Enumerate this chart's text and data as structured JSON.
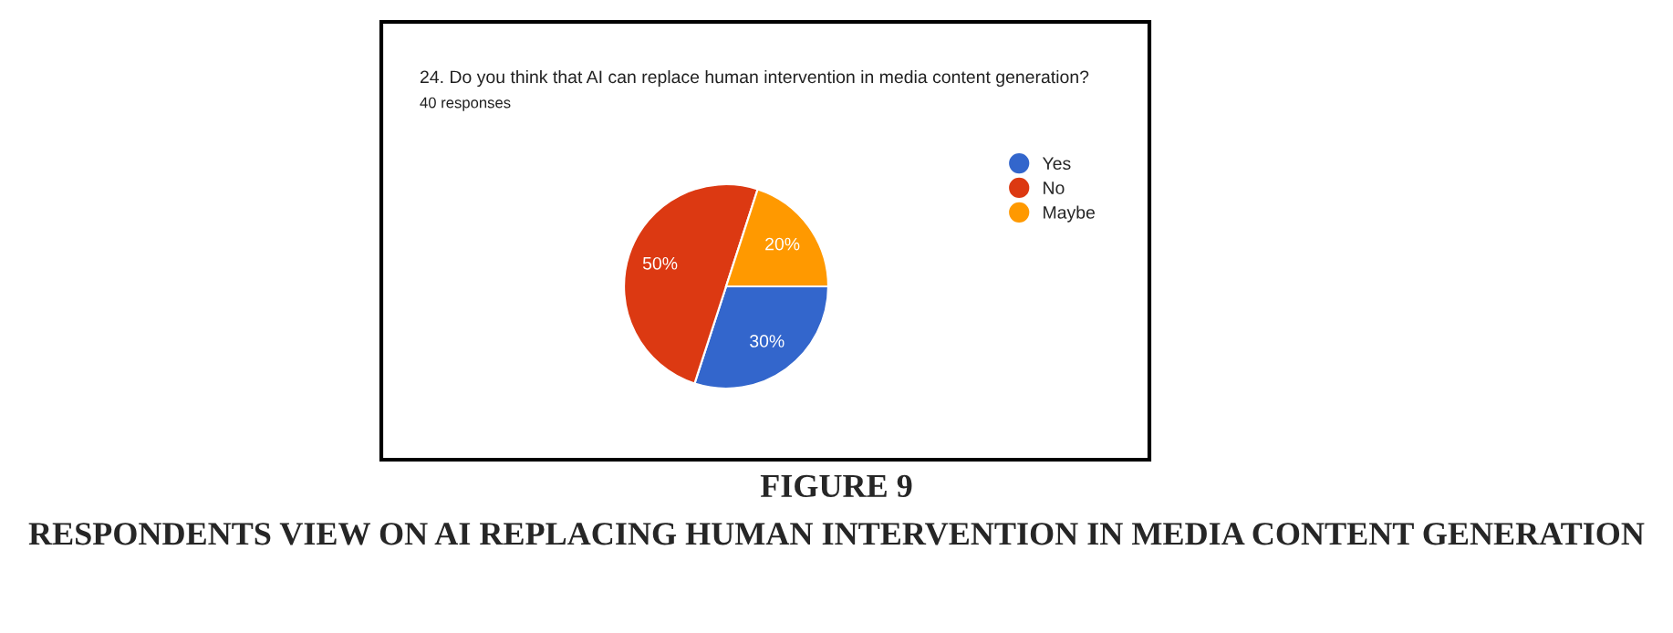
{
  "chart_data": {
    "type": "pie",
    "title": "24. Do you think that AI can replace human intervention in media content generation?",
    "subtitle": "40 responses",
    "categories": [
      "Yes",
      "No",
      "Maybe"
    ],
    "values": [
      30,
      50,
      20
    ],
    "colors": [
      "#3366cc",
      "#dc3912",
      "#ff9900"
    ],
    "value_labels": [
      "30%",
      "50%",
      "20%"
    ],
    "legend": "right",
    "annotations": [
      "FIGURE 9",
      "RESPONDENTS VIEW ON AI REPLACING HUMAN INTERVENTION IN MEDIA CONTENT GENERATION"
    ]
  }
}
